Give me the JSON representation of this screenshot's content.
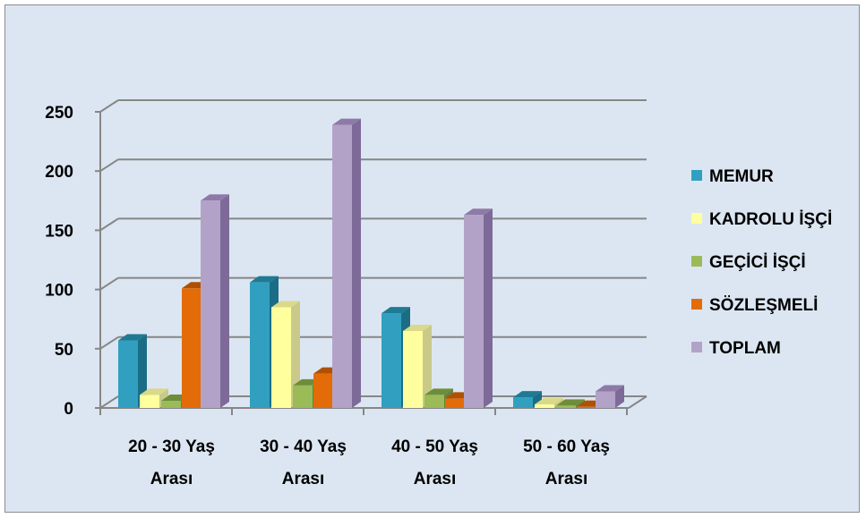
{
  "chart_data": {
    "type": "bar",
    "title": "",
    "xlabel": "",
    "ylabel": "",
    "ylim": [
      0,
      250
    ],
    "yticks": [
      0,
      50,
      100,
      150,
      200,
      250
    ],
    "grid": true,
    "legend_position": "right",
    "categories": [
      [
        "20 - 30 Yaş",
        "Arası"
      ],
      [
        "30 - 40 Yaş",
        "Arası"
      ],
      [
        "40 - 50 Yaş",
        "Arası"
      ],
      [
        "50 - 60 Yaş",
        "Arası"
      ]
    ],
    "series": [
      {
        "name": "MEMUR",
        "color": "#31a0c0",
        "top": "#1f7a94",
        "side": "#1b6d85",
        "values": [
          57,
          106,
          80,
          9
        ]
      },
      {
        "name": "KADROLU İŞÇİ",
        "color": "#ffff9e",
        "top": "#d9d98a",
        "side": "#c9c98a",
        "values": [
          11,
          85,
          65,
          3
        ]
      },
      {
        "name": "GEÇİCİ İŞÇİ",
        "color": "#9bbb59",
        "top": "#6e8d3a",
        "side": "#66823a",
        "values": [
          6,
          19,
          11,
          2
        ]
      },
      {
        "name": "SÖZLEŞMELİ",
        "color": "#e36c09",
        "top": "#b05005",
        "side": "#9e4505",
        "values": [
          101,
          29,
          8,
          1
        ]
      },
      {
        "name": "TOPLAM",
        "color": "#b3a2c7",
        "top": "#8e7aa8",
        "side": "#7e6a98",
        "values": [
          175,
          239,
          163,
          14
        ]
      }
    ]
  }
}
